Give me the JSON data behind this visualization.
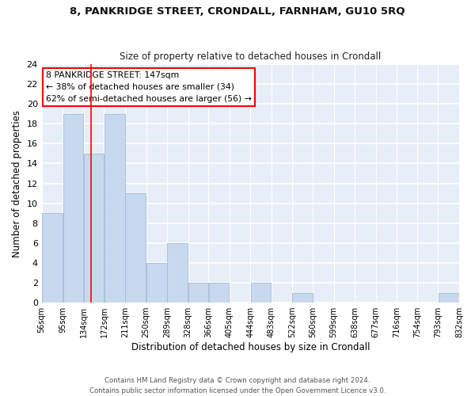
{
  "title": "8, PANKRIDGE STREET, CRONDALL, FARNHAM, GU10 5RQ",
  "subtitle": "Size of property relative to detached houses in Crondall",
  "xlabel": "Distribution of detached houses by size in Crondall",
  "ylabel": "Number of detached properties",
  "bar_color": "#c8d8ee",
  "bar_edge_color": "#a0bcd8",
  "background_color": "#e8eef8",
  "grid_color": "#ffffff",
  "bins": [
    56,
    95,
    134,
    172,
    211,
    250,
    289,
    328,
    366,
    405,
    444,
    483,
    522,
    560,
    599,
    638,
    677,
    716,
    754,
    793,
    832
  ],
  "bin_labels": [
    "56sqm",
    "95sqm",
    "134sqm",
    "172sqm",
    "211sqm",
    "250sqm",
    "289sqm",
    "328sqm",
    "366sqm",
    "405sqm",
    "444sqm",
    "483sqm",
    "522sqm",
    "560sqm",
    "599sqm",
    "638sqm",
    "677sqm",
    "716sqm",
    "754sqm",
    "793sqm",
    "832sqm"
  ],
  "values": [
    9,
    19,
    15,
    19,
    11,
    4,
    6,
    2,
    2,
    0,
    2,
    0,
    1,
    0,
    0,
    0,
    0,
    0,
    0,
    1
  ],
  "ylim": [
    0,
    24
  ],
  "yticks": [
    0,
    2,
    4,
    6,
    8,
    10,
    12,
    14,
    16,
    18,
    20,
    22,
    24
  ],
  "red_line_x": 147,
  "annotation_text": "8 PANKRIDGE STREET: 147sqm\n← 38% of detached houses are smaller (34)\n62% of semi-detached houses are larger (56) →",
  "footer_line1": "Contains HM Land Registry data © Crown copyright and database right 2024.",
  "footer_line2": "Contains public sector information licensed under the Open Government Licence v3.0."
}
